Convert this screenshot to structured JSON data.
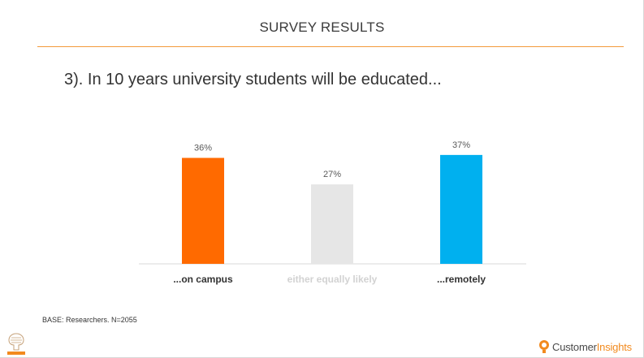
{
  "header": {
    "title": "SURVEY RESULTS"
  },
  "question": "3). In 10 years university students will be educated...",
  "chart_data": {
    "type": "bar",
    "title": "",
    "xlabel": "",
    "ylabel": "",
    "categories": [
      "...on campus",
      "either equally likely",
      "...remotely"
    ],
    "values": [
      36,
      27,
      37
    ],
    "value_labels": [
      "36%",
      "27%",
      "37%"
    ],
    "colors": [
      "#ff6a00",
      "#e6e6e6",
      "#00b0ef"
    ],
    "label_colors": [
      "#333333",
      "#d2d2d2",
      "#333333"
    ],
    "ylim": [
      0,
      40
    ],
    "grid": false
  },
  "footer": {
    "base_note": "BASE: Researchers. N=2055",
    "brand_part1": "Customer",
    "brand_part2": "Insights"
  },
  "colors": {
    "accent_line": "#f39a3c",
    "brand_orange": "#f28a1e"
  },
  "icons": {
    "publisher_logo": "elsevier-tree-logo",
    "brand_logo": "customer-insights-bulb-icon"
  }
}
